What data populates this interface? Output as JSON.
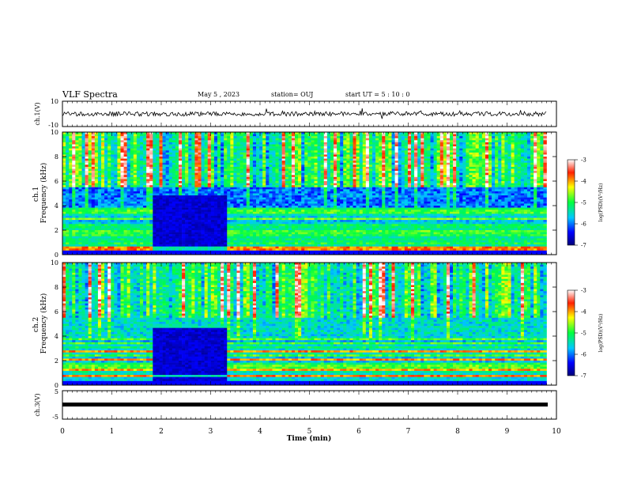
{
  "header": {
    "title": "VLF Spectra",
    "date": "May 5 , 2023",
    "station": "station= OUJ",
    "start": "start UT = 5 : 10 : 0"
  },
  "chart_data": [
    {
      "type": "line",
      "name": "ch1-waveform",
      "ylabel": "ch.1(V)",
      "xlim": [
        0,
        10
      ],
      "ylim": [
        -10,
        10
      ],
      "yticks": [
        "10",
        "-10"
      ],
      "grid": false
    },
    {
      "type": "heatmap",
      "name": "ch1-spectrogram",
      "ylabel": "ch.1 Frequency (kHz)",
      "xlim": [
        0,
        10
      ],
      "ylim": [
        0,
        10
      ],
      "yticks": [
        "0",
        "2",
        "4",
        "6",
        "8",
        "10"
      ],
      "colorbar": {
        "label": "log(PSD)(V²/Hz)",
        "ticks": [
          "-3",
          "-4",
          "-5",
          "-6",
          "-7"
        ],
        "range": [
          -7,
          -3
        ]
      },
      "quiet_interval_min": [
        1.8,
        3.3
      ]
    },
    {
      "type": "heatmap",
      "name": "ch2-spectrogram",
      "ylabel": "ch.2 Frequency (kHz)",
      "xlim": [
        0,
        10
      ],
      "ylim": [
        0,
        10
      ],
      "yticks": [
        "0",
        "2",
        "4",
        "6",
        "8",
        "10"
      ],
      "colorbar": {
        "label": "log(PSD)(V²/Hz)",
        "ticks": [
          "-3",
          "-4",
          "-5",
          "-6",
          "-7"
        ],
        "range": [
          -7,
          -3
        ]
      },
      "quiet_interval_min": [
        1.8,
        3.3
      ]
    },
    {
      "type": "line",
      "name": "ch3-waveform",
      "ylabel": "ch.3(V)",
      "xlim": [
        0,
        10
      ],
      "ylim": [
        -5,
        5
      ],
      "yticks": [
        "5",
        "-5"
      ],
      "grid": false
    }
  ],
  "xaxis": {
    "label": "Time (min)",
    "ticks": [
      "0",
      "1",
      "2",
      "3",
      "4",
      "5",
      "6",
      "7",
      "8",
      "9",
      "10"
    ],
    "data_end_min": 9.8
  },
  "colors": {
    "low": "#00008a",
    "mid": "#00e050",
    "high": "#ff2000"
  }
}
